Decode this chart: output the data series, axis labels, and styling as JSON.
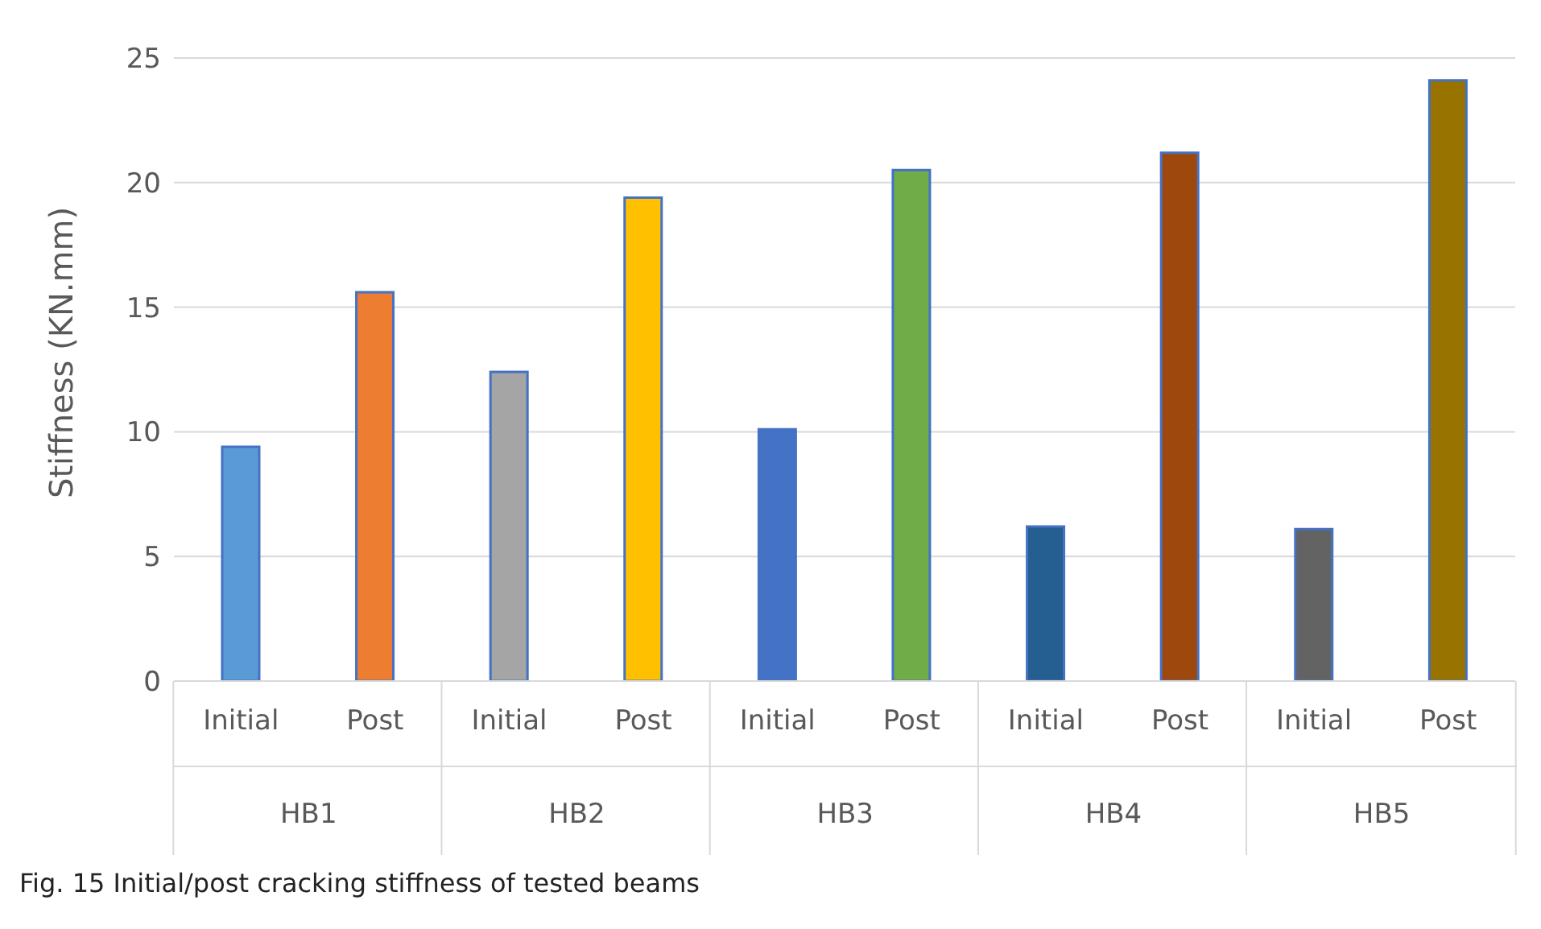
{
  "chart_data": {
    "type": "bar",
    "title": "Fig. 15 Initial/post cracking stiffness of tested beams",
    "ylabel": "Stiffness (KN.mm)",
    "categories": [
      "Initial",
      "Post",
      "Initial",
      "Post",
      "Initial",
      "Post",
      "Initial",
      "Post",
      "Initial",
      "Post"
    ],
    "values": [
      9.4,
      15.6,
      12.4,
      19.4,
      10.1,
      20.5,
      6.2,
      21.2,
      6.1,
      24.1
    ],
    "colors": [
      "#5b9bd5",
      "#ed7d31",
      "#a5a5a5",
      "#ffc000",
      "#4472c4",
      "#70ad47",
      "#255e91",
      "#9e480e",
      "#636363",
      "#997300"
    ],
    "annotations": [
      "HB1",
      "HB2",
      "HB3",
      "HB4",
      "HB5"
    ],
    "ylim": [
      0,
      25
    ],
    "yticks": [
      0,
      5,
      10,
      15,
      20,
      25
    ],
    "grid": "y"
  }
}
